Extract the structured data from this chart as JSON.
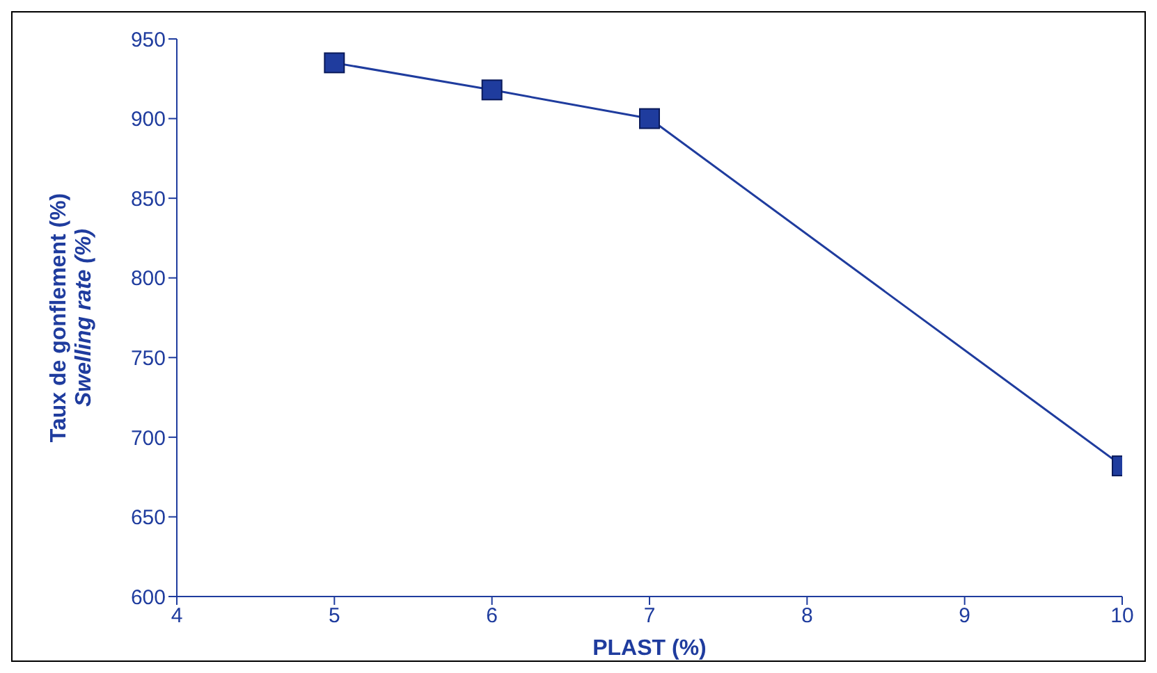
{
  "chart_data": {
    "type": "line",
    "xlabel": "PLAST (%)",
    "ylabel": [
      "Taux de gonflement (%)",
      "Swelling rate (%)"
    ],
    "x": [
      5,
      6,
      7,
      10
    ],
    "series": [
      {
        "color": "#1f3c9e",
        "values": [
          935,
          918,
          900,
          682
        ]
      }
    ],
    "xlim": [
      4,
      10
    ],
    "xticks": [
      4,
      5,
      6,
      7,
      8,
      9,
      10
    ],
    "ylim": [
      600,
      950
    ],
    "yticks": [
      600,
      650,
      700,
      750,
      800,
      850,
      900,
      950
    ],
    "grid": false,
    "legend": false,
    "marker": "square",
    "line_style": "solid"
  }
}
